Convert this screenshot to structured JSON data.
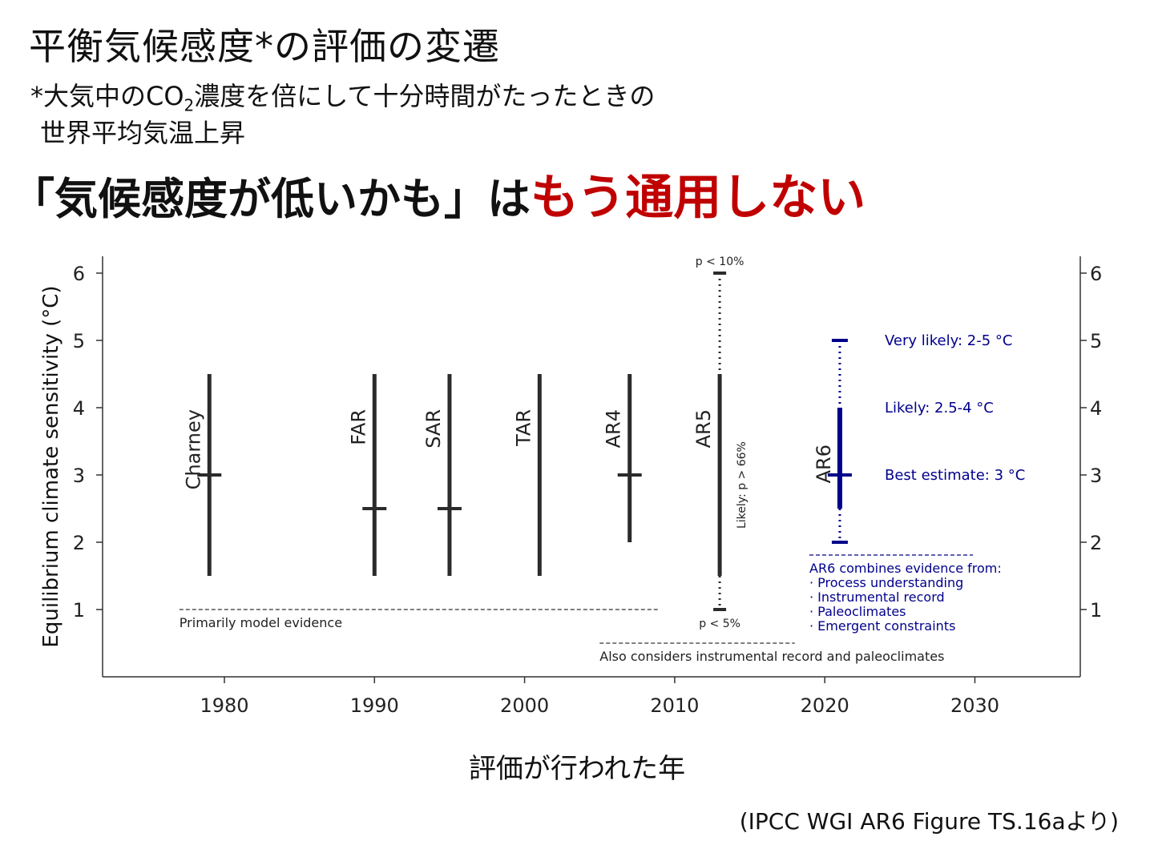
{
  "title": "平衡気候感度*の評価の変遷",
  "footnote": {
    "line1_pre": "*大気中のCO",
    "line1_sub": "2",
    "line1_post": "濃度を倍にして十分時間がたったときの",
    "line2": "世界平均気温上昇"
  },
  "headline": {
    "black": "「気候感度が低いかも」は",
    "red": "もう通用しない",
    "red_color": "#c00000"
  },
  "x_caption": "評価が行われた年",
  "source": "(IPCC WGI AR6 Figure TS.16aより)",
  "chart_data": {
    "type": "errorbar",
    "ylabel": "Equilibrium climate sensitivity (°C)",
    "xlabel": "",
    "xlim": [
      1972,
      2037
    ],
    "ylim": [
      0,
      6
    ],
    "xticks": [
      1980,
      1990,
      2000,
      2010,
      2020,
      2030
    ],
    "yticks": [
      1,
      2,
      3,
      4,
      5,
      6
    ],
    "right_axis_ticks": true,
    "grid": false,
    "assessments": [
      {
        "name": "Charney",
        "year": 1979,
        "low": 1.5,
        "high": 4.5,
        "best": 3.0
      },
      {
        "name": "FAR",
        "year": 1990,
        "low": 1.5,
        "high": 4.5,
        "best": 2.5
      },
      {
        "name": "SAR",
        "year": 1995,
        "low": 1.5,
        "high": 4.5,
        "best": 2.5
      },
      {
        "name": "TAR",
        "year": 2001,
        "low": 1.5,
        "high": 4.5,
        "best": null
      },
      {
        "name": "AR4",
        "year": 2007,
        "low": 2.0,
        "high": 4.5,
        "best": 3.0
      },
      {
        "name": "AR5",
        "year": 2013,
        "low": 1.5,
        "high": 4.5,
        "best": null,
        "outer_low": 1.0,
        "outer_high": 6.0,
        "label_outer_high": "p < 10%",
        "label_outer_low": "p < 5%",
        "likely_label": "Likely: p > 66%"
      },
      {
        "name": "AR6",
        "year": 2021,
        "low": 2.5,
        "high": 4.0,
        "best": 3.0,
        "very_likely_low": 2.0,
        "very_likely_high": 5.0
      }
    ],
    "ar6_color": "#00008b",
    "ar6_annotations": [
      {
        "text": "Very likely: 2-5 °C",
        "y": 5.0
      },
      {
        "text": "Likely: 2.5-4 °C",
        "y": 4.0
      },
      {
        "text": "Best estimate: 3 °C",
        "y": 3.0
      }
    ],
    "ar6_evidence": {
      "heading": "AR6 combines evidence from:",
      "items": [
        "· Process understanding",
        "· Instrumental record",
        "· Paleoclimates",
        "· Emergent constraints"
      ]
    },
    "evidence_lines": [
      {
        "text": "Primarily model evidence",
        "x_start": 1977,
        "x_end": 2009,
        "y": 1.0
      },
      {
        "text": "Also considers instrumental record and paleoclimates",
        "x_start": 2005,
        "x_end": 2018,
        "y": 0.5
      }
    ]
  }
}
